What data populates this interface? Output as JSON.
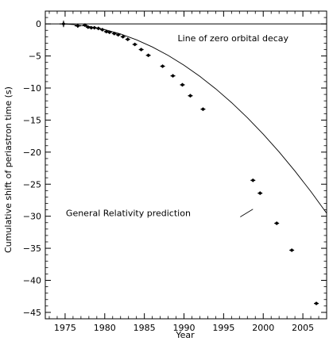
{
  "chart_data": {
    "type": "scatter",
    "title": "",
    "xlabel": "Year",
    "ylabel": "Cumulative shift of periastron time (s)",
    "xlim": [
      1972.5,
      2008
    ],
    "ylim": [
      -46,
      2
    ],
    "xticks": [
      1975,
      1980,
      1985,
      1990,
      1995,
      2000,
      2005
    ],
    "xtick_labels": [
      "1975",
      "1980",
      "1985",
      "1990",
      "1995",
      "2000",
      "2005"
    ],
    "yticks": [
      0,
      -5,
      -10,
      -15,
      -20,
      -25,
      -30,
      -35,
      -40,
      -45
    ],
    "ytick_labels": [
      "0",
      "−5",
      "−10",
      "−15",
      "−20",
      "−25",
      "−30",
      "−35",
      "−40",
      "−45"
    ],
    "grid": false,
    "series": [
      {
        "kind": "points_with_error_bars",
        "x": [
          1974.8,
          1976.6,
          1977.5,
          1977.9,
          1978.3,
          1978.7,
          1979.2,
          1979.7,
          1980.2,
          1980.6,
          1981.2,
          1981.7,
          1982.3,
          1982.9,
          1983.8,
          1984.6,
          1985.5,
          1987.3,
          1988.6,
          1989.8,
          1990.8,
          1992.4,
          1998.7,
          1999.6,
          2001.7,
          2003.6,
          2006.7
        ],
        "y": [
          0.0,
          -0.3,
          -0.2,
          -0.5,
          -0.6,
          -0.6,
          -0.7,
          -0.9,
          -1.2,
          -1.3,
          -1.5,
          -1.7,
          -2.0,
          -2.4,
          -3.2,
          -4.0,
          -4.9,
          -6.6,
          -8.1,
          -9.5,
          -11.2,
          -13.3,
          -24.4,
          -26.4,
          -31.1,
          -35.3,
          -43.6
        ],
        "xerr": [
          0.5,
          0.4,
          0.3,
          0.3,
          0.3,
          0.3,
          0.3,
          0.3,
          0.3,
          0.3,
          0.3,
          0.3,
          0.3,
          0.3,
          0.3,
          0.3,
          0.3,
          0.3,
          0.3,
          0.3,
          0.3,
          0.3,
          0.3,
          0.3,
          0.3,
          0.3,
          0.3
        ],
        "yerr": [
          0.5,
          0.3,
          0.2,
          0.2,
          0.2,
          0.2,
          0.2,
          0.2,
          0.2,
          0.2,
          0.2,
          0.2,
          0.2,
          0.2,
          0.2,
          0.2,
          0.2,
          0.2,
          0.2,
          0.2,
          0.2,
          0.2,
          0.2,
          0.2,
          0.2,
          0.2,
          0.2
        ]
      },
      {
        "kind": "curve",
        "x": [
          1974.8,
          1976,
          1978,
          1980,
          1982,
          1984,
          1986,
          1988,
          1990,
          1992,
          1994,
          1996,
          1998,
          2000,
          2002,
          2004,
          2006,
          2008
        ],
        "y": [
          0.0,
          -0.1,
          -0.39,
          -0.88,
          -1.57,
          -2.48,
          -3.59,
          -4.91,
          -6.44,
          -8.18,
          -10.12,
          -12.27,
          -14.63,
          -17.2,
          -19.97,
          -22.95,
          -26.13,
          -29.53
        ]
      },
      {
        "kind": "line",
        "x": [
          1972.5,
          2008
        ],
        "y": [
          0,
          0
        ]
      }
    ],
    "annotations": [
      {
        "text": "Line of zero orbital decay",
        "x": 1989.2,
        "y": -2.2
      },
      {
        "text": "General Relativity prediction",
        "x": 1975.1,
        "y": -29.5,
        "pointer_to": [
          1998.7,
          -28.9
        ]
      }
    ]
  }
}
